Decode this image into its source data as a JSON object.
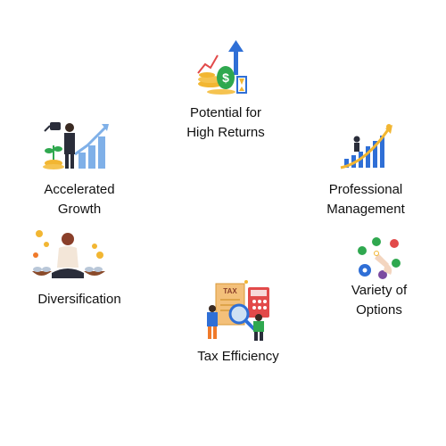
{
  "benefits": [
    {
      "label": "Potential for\nHigh Returns",
      "icon": "money-growth-icon"
    },
    {
      "label": "Accelerated\nGrowth",
      "icon": "watering-growth-icon"
    },
    {
      "label": "Professional\nManagement",
      "icon": "climbing-chart-icon"
    },
    {
      "label": "Diversification",
      "icon": "balance-meditation-icon"
    },
    {
      "label": "Variety of\nOptions",
      "icon": "hand-options-icon"
    },
    {
      "label": "Tax Efficiency",
      "icon": "tax-document-icon"
    }
  ],
  "colors": {
    "blue": "#2f6fd6",
    "lightblue": "#7fb0e8",
    "gold": "#f2b632",
    "green": "#2fa84f",
    "orange": "#f07a2a",
    "purple": "#7b4aa0",
    "red": "#e24a4a"
  }
}
